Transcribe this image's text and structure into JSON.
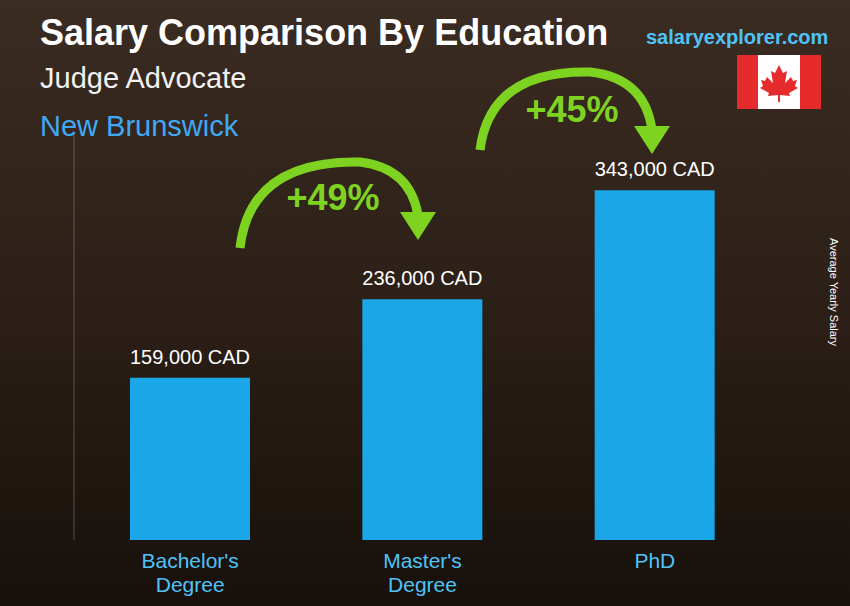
{
  "chart_data": {
    "type": "bar",
    "title": "Salary Comparison By Education",
    "subtitle": [
      "Judge Advocate",
      "New Brunswick"
    ],
    "watermark": "salaryexplorer.com",
    "y_label": "Average Yearly Salary",
    "categories": [
      "Bachelor's Degree",
      "Master's Degree",
      "PhD"
    ],
    "values": [
      159000,
      236000,
      343000
    ],
    "value_labels": [
      "159,000 CAD",
      "236,000 CAD",
      "343,000 CAD"
    ],
    "data_labels": true,
    "annotations": [
      "+49%",
      "+45%"
    ],
    "color": "#1ba6e8",
    "ylim": [
      0,
      400000
    ],
    "tick_labels": "x",
    "grid": false
  }
}
